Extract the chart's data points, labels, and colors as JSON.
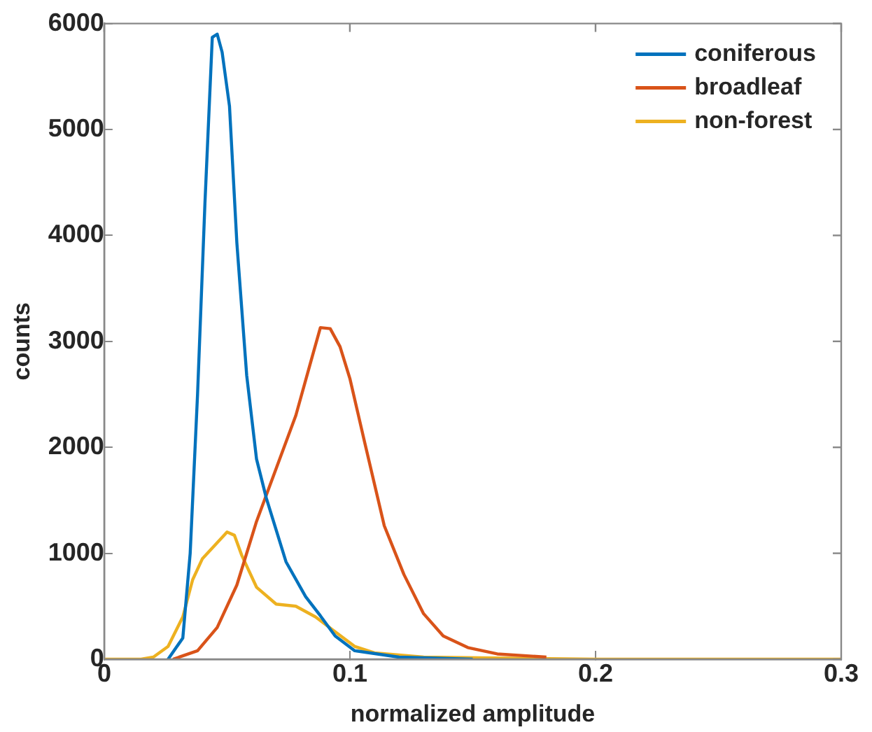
{
  "chart_data": {
    "type": "line",
    "xlabel": "normalized amplitude",
    "ylabel": "counts",
    "xlim": [
      0,
      0.3
    ],
    "xticks": [
      0,
      0.1,
      0.2,
      0.3
    ],
    "ylim": [
      0,
      6000
    ],
    "yticks": [
      0,
      1000,
      2000,
      3000,
      4000,
      5000,
      6000
    ],
    "grid": false,
    "legend": "top right",
    "marker": "none",
    "line_style": "solid",
    "series": [
      {
        "name": "coniferous",
        "color": "#0072bd",
        "x": [
          0.026,
          0.032,
          0.035,
          0.038,
          0.041,
          0.044,
          0.046,
          0.048,
          0.051,
          0.054,
          0.058,
          0.062,
          0.066,
          0.074,
          0.082,
          0.088,
          0.094,
          0.102,
          0.12,
          0.15
        ],
        "values": [
          0,
          200,
          1000,
          2500,
          4300,
          5870,
          5900,
          5730,
          5220,
          3930,
          2680,
          1890,
          1520,
          920,
          590,
          410,
          220,
          80,
          20,
          0
        ]
      },
      {
        "name": "broadleaf",
        "color": "#d95319",
        "x": [
          0.028,
          0.038,
          0.046,
          0.054,
          0.062,
          0.07,
          0.078,
          0.084,
          0.088,
          0.092,
          0.096,
          0.1,
          0.106,
          0.114,
          0.122,
          0.13,
          0.138,
          0.148,
          0.16,
          0.18
        ],
        "values": [
          0,
          80,
          300,
          700,
          1300,
          1800,
          2300,
          2800,
          3130,
          3120,
          2950,
          2650,
          2050,
          1260,
          800,
          430,
          220,
          110,
          50,
          20
        ]
      },
      {
        "name": "non-forest",
        "color": "#edb120",
        "x": [
          0,
          0.015,
          0.02,
          0.026,
          0.032,
          0.036,
          0.04,
          0.046,
          0.05,
          0.053,
          0.056,
          0.062,
          0.07,
          0.078,
          0.086,
          0.094,
          0.102,
          0.11,
          0.13,
          0.2,
          0.3
        ],
        "values": [
          0,
          0,
          20,
          120,
          400,
          750,
          950,
          1100,
          1200,
          1170,
          980,
          680,
          520,
          500,
          400,
          260,
          120,
          60,
          20,
          0,
          0
        ]
      }
    ]
  }
}
